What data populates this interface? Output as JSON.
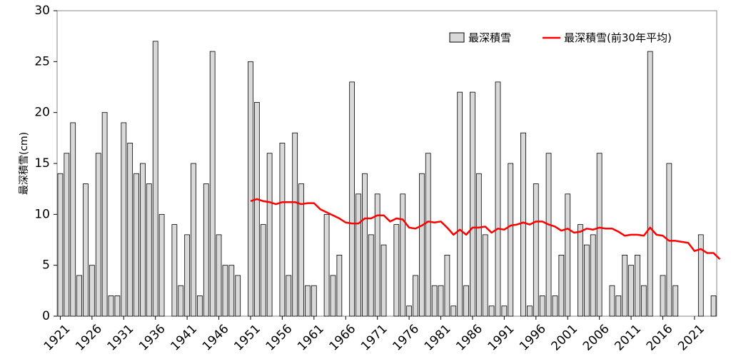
{
  "chart_data": {
    "type": "bar",
    "title": "",
    "xlabel": "",
    "ylabel": "最深積雪(cm)",
    "ylim": [
      0,
      30
    ],
    "yticks": [
      0,
      5,
      10,
      15,
      20,
      25,
      30
    ],
    "grid": false,
    "legend_position": "top-right",
    "x_start": 1921,
    "xtick_labels": [
      "1921",
      "1926",
      "1931",
      "1936",
      "1941",
      "1946",
      "1951",
      "1956",
      "1961",
      "1966",
      "1971",
      "1976",
      "1981",
      "1986",
      "1991",
      "1996",
      "2001",
      "2006",
      "2011",
      "2016",
      "2021"
    ],
    "series": [
      {
        "name": "最深積雪",
        "kind": "bar",
        "color": "#d9d9d9",
        "values": [
          14,
          16,
          19,
          4,
          13,
          5,
          16,
          20,
          2,
          2,
          19,
          17,
          14,
          15,
          13,
          27,
          10,
          null,
          9,
          3,
          8,
          15,
          2,
          13,
          26,
          8,
          5,
          5,
          4,
          null,
          25,
          21,
          9,
          16,
          null,
          17,
          4,
          18,
          13,
          3,
          3,
          null,
          10,
          4,
          6,
          null,
          23,
          12,
          14,
          8,
          12,
          7,
          null,
          9,
          12,
          1,
          4,
          14,
          16,
          3,
          3,
          6,
          1,
          22,
          3,
          22,
          14,
          8,
          1,
          23,
          1,
          15,
          null,
          18,
          1,
          13,
          2,
          16,
          2,
          6,
          12,
          null,
          9,
          7,
          8,
          16,
          null,
          3,
          2,
          6,
          5,
          6,
          3,
          26,
          null,
          4,
          15,
          3,
          null,
          null,
          null,
          8,
          null,
          2
        ]
      },
      {
        "name": "最深積雪(前30年平均)",
        "kind": "line",
        "color": "#ff0000",
        "values": [
          null,
          null,
          null,
          null,
          null,
          null,
          null,
          null,
          null,
          null,
          null,
          null,
          null,
          null,
          null,
          null,
          null,
          null,
          null,
          null,
          null,
          null,
          null,
          null,
          null,
          null,
          null,
          null,
          null,
          null,
          11.3,
          11.5,
          11.3,
          11.2,
          11.0,
          11.2,
          11.2,
          11.2,
          11.0,
          11.1,
          11.1,
          10.5,
          10.2,
          9.9,
          9.6,
          9.2,
          9.1,
          9.1,
          9.6,
          9.6,
          9.9,
          9.9,
          9.3,
          9.6,
          9.5,
          8.7,
          8.6,
          8.9,
          9.3,
          9.2,
          9.3,
          8.7,
          8.0,
          8.5,
          8.0,
          8.7,
          8.7,
          8.8,
          8.2,
          8.6,
          8.5,
          8.9,
          9.0,
          9.2,
          9.0,
          9.3,
          9.3,
          9.0,
          8.8,
          8.4,
          8.6,
          8.2,
          8.3,
          8.6,
          8.5,
          8.7,
          8.6,
          8.6,
          8.3,
          7.9,
          8.0,
          8.0,
          7.9,
          8.7,
          8.0,
          7.9,
          7.4,
          7.4,
          7.3,
          7.2,
          6.4,
          6.6,
          6.2,
          6.2,
          5.6
        ]
      }
    ]
  }
}
